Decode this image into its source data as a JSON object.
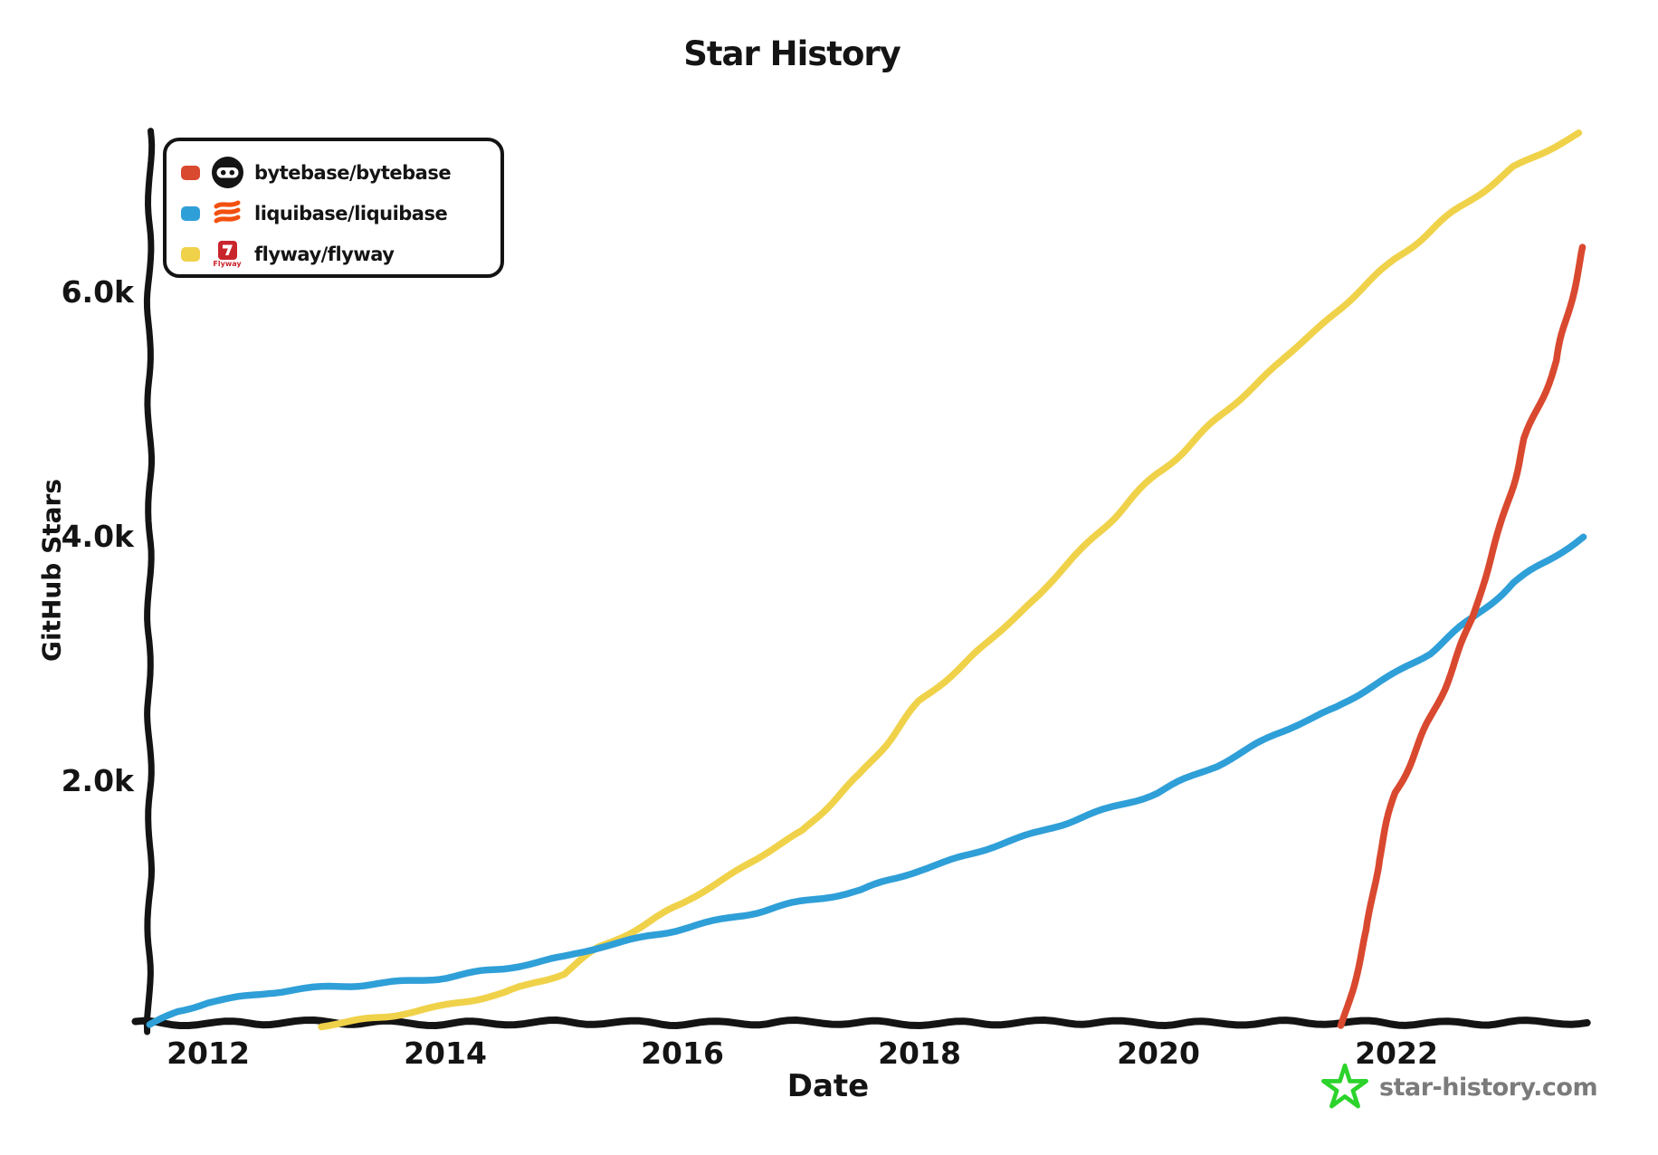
{
  "title": "Star History",
  "axes": {
    "y_label": "GitHub Stars",
    "y_ticks": [
      "6.0k",
      "4.0k",
      "2.0k"
    ],
    "x_label": "Date",
    "x_ticks": [
      "2012",
      "2014",
      "2016",
      "2018",
      "2020",
      "2022"
    ]
  },
  "legend": {
    "items": [
      {
        "label": "bytebase/bytebase",
        "color": "#d9492f"
      },
      {
        "label": "liquibase/liquibase",
        "color": "#2f9fd8"
      },
      {
        "label": "flyway/flyway",
        "color": "#f0d24a",
        "logo_text": "Flyway"
      }
    ]
  },
  "footer": {
    "brand": "star-history.com",
    "star_color": "#2bd32b"
  },
  "chart_data": {
    "type": "line",
    "title": "Star History",
    "xlabel": "Date",
    "ylabel": "GitHub Stars",
    "x_ticks": [
      2012,
      2014,
      2016,
      2018,
      2020,
      2022
    ],
    "y_ticks": [
      2000,
      4000,
      6000
    ],
    "xlim": [
      2011.5,
      2023.7
    ],
    "ylim": [
      0,
      7300
    ],
    "grid": false,
    "legend_position": "top-left",
    "series": [
      {
        "name": "bytebase/bytebase",
        "color": "#d9492f",
        "points": [
          [
            2021.56,
            0
          ],
          [
            2021.65,
            300
          ],
          [
            2021.78,
            800
          ],
          [
            2021.87,
            1360
          ],
          [
            2022.0,
            1900
          ],
          [
            2022.2,
            2300
          ],
          [
            2022.42,
            2760
          ],
          [
            2022.67,
            3340
          ],
          [
            2022.9,
            4100
          ],
          [
            2023.1,
            4800
          ],
          [
            2023.37,
            5430
          ],
          [
            2023.5,
            5950
          ],
          [
            2023.6,
            6380
          ]
        ]
      },
      {
        "name": "liquibase/liquibase",
        "color": "#2f9fd8",
        "points": [
          [
            2011.5,
            0
          ],
          [
            2011.75,
            120
          ],
          [
            2012.0,
            195
          ],
          [
            2012.5,
            270
          ],
          [
            2013.0,
            310
          ],
          [
            2013.5,
            345
          ],
          [
            2014.0,
            400
          ],
          [
            2014.5,
            470
          ],
          [
            2015.0,
            555
          ],
          [
            2015.3,
            640
          ],
          [
            2016.0,
            800
          ],
          [
            2016.5,
            905
          ],
          [
            2017.0,
            1005
          ],
          [
            2017.5,
            1105
          ],
          [
            2018.0,
            1280
          ],
          [
            2018.5,
            1430
          ],
          [
            2019.0,
            1580
          ],
          [
            2019.5,
            1740
          ],
          [
            2020.0,
            1910
          ],
          [
            2020.5,
            2130
          ],
          [
            2021.0,
            2380
          ],
          [
            2021.5,
            2600
          ],
          [
            2022.0,
            2880
          ],
          [
            2022.3,
            3050
          ],
          [
            2022.67,
            3330
          ],
          [
            2023.0,
            3620
          ],
          [
            2023.3,
            3810
          ],
          [
            2023.58,
            4000
          ]
        ]
      },
      {
        "name": "flyway/flyway",
        "color": "#f0d24a",
        "points": [
          [
            2012.95,
            0
          ],
          [
            2013.5,
            80
          ],
          [
            2014.0,
            165
          ],
          [
            2014.5,
            260
          ],
          [
            2015.0,
            430
          ],
          [
            2015.3,
            640
          ],
          [
            2016.0,
            1000
          ],
          [
            2016.5,
            1290
          ],
          [
            2017.0,
            1590
          ],
          [
            2017.5,
            2050
          ],
          [
            2018.0,
            2650
          ],
          [
            2018.5,
            3080
          ],
          [
            2019.0,
            3520
          ],
          [
            2019.5,
            4020
          ],
          [
            2020.0,
            4520
          ],
          [
            2020.5,
            4960
          ],
          [
            2021.0,
            5390
          ],
          [
            2021.5,
            5830
          ],
          [
            2022.0,
            6270
          ],
          [
            2022.5,
            6650
          ],
          [
            2023.0,
            7020
          ],
          [
            2023.3,
            7170
          ],
          [
            2023.55,
            7300
          ]
        ]
      }
    ]
  }
}
